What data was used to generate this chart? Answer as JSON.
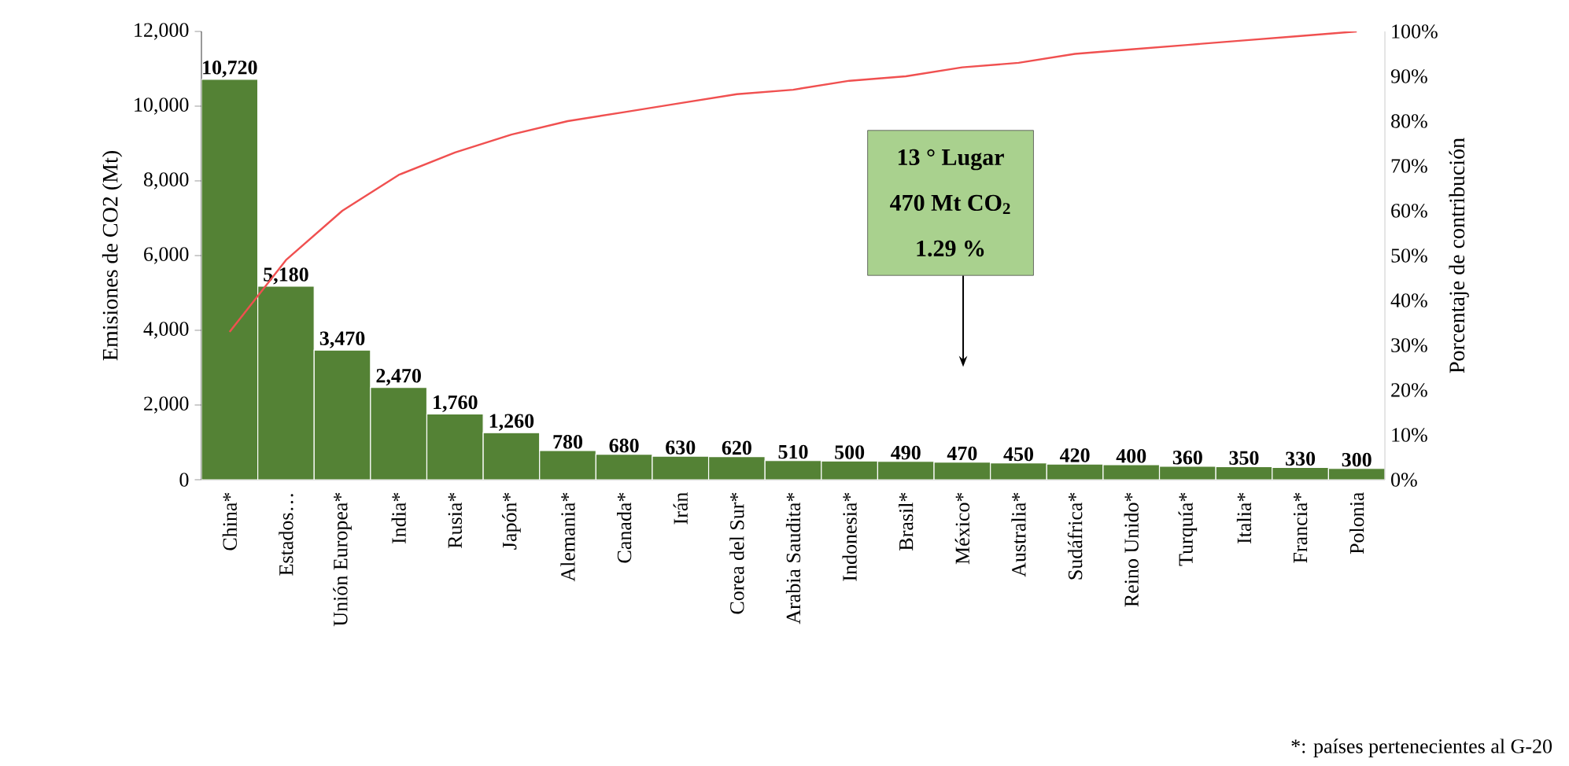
{
  "chart_data": {
    "type": "bar",
    "xlabel": null,
    "ylabel": "Emisiones de CO2 (Mt)",
    "y2label": "Porcentaje de contribución",
    "categories": [
      "China*",
      "Estados…",
      "Unión Europea*",
      "India*",
      "Rusia*",
      "Japón*",
      "Alemania*",
      "Canada*",
      "Irán",
      "Corea del Sur*",
      "Arabia Saudita*",
      "Indonesia*",
      "Brasil*",
      "México*",
      "Australia*",
      "Sudáfrica*",
      "Reino Unido*",
      "Turquía*",
      "Italia*",
      "Francia*",
      "Polonia"
    ],
    "series": [
      {
        "color": "#548235",
        "values": [
          10720,
          5180,
          3470,
          2470,
          1760,
          1260,
          780,
          680,
          630,
          620,
          510,
          500,
          490,
          470,
          450,
          420,
          400,
          360,
          350,
          330,
          300
        ],
        "value_labels": [
          "10,720",
          "5,180",
          "3,470",
          "2,470",
          "1,760",
          "1,260",
          "780",
          "680",
          "630",
          "620",
          "510",
          "500",
          "490",
          "470",
          "450",
          "420",
          "400",
          "360",
          "350",
          "330",
          "300"
        ]
      },
      {
        "type": "line",
        "axis": "y2",
        "color": "#f05050",
        "values": [
          33,
          49,
          60,
          68,
          73,
          77,
          80,
          82,
          84,
          86,
          87,
          89,
          90,
          92,
          93,
          95,
          96,
          97,
          98,
          99,
          100
        ]
      }
    ],
    "ylim": [
      0,
      12000
    ],
    "yticks": [
      0,
      {
        "value": 2000,
        "label": "2,000"
      },
      {
        "value": 4000,
        "label": "4,000"
      },
      {
        "value": 6000,
        "label": "6,000"
      },
      {
        "value": 8000,
        "label": "8,000"
      },
      {
        "value": 10000,
        "label": "10,000"
      },
      {
        "value": 12000,
        "label": "12,000"
      }
    ],
    "y2lim": [
      0,
      100
    ],
    "y2ticks": [
      {
        "value": 0,
        "label": "0%"
      },
      {
        "value": 10,
        "label": "10%"
      },
      {
        "value": 20,
        "label": "20%"
      },
      {
        "value": 30,
        "label": "30%"
      },
      {
        "value": 40,
        "label": "40%"
      },
      {
        "value": 50,
        "label": "50%"
      },
      {
        "value": 60,
        "label": "60%"
      },
      {
        "value": 70,
        "label": "70%"
      },
      {
        "value": 80,
        "label": "80%"
      },
      {
        "value": 90,
        "label": "90%"
      },
      {
        "value": 100,
        "label": "100%"
      }
    ],
    "annotations": [
      "13 ° Lugar",
      "470 Mt CO$_{2}$",
      "1.29 %",
      "*: países pertenecientes al G-20"
    ]
  }
}
